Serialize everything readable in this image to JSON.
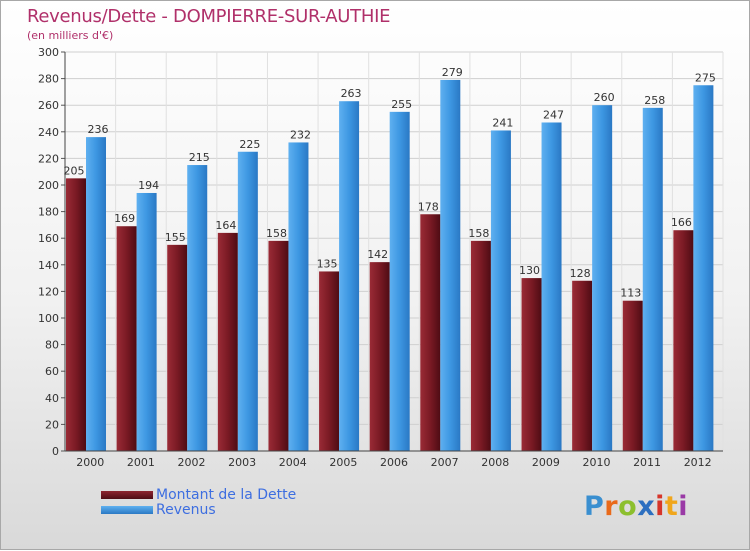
{
  "title": "Revenus/Dette - DOMPIERRE-SUR-AUTHIE",
  "subtitle": "(en milliers d'€)",
  "logo_text": "Proxiti",
  "colors": {
    "debt": "#7a1a24",
    "revenue": "#3d97e2",
    "title": "#b0306a",
    "legend_text": "#3d6ee0"
  },
  "chart_data": {
    "type": "bar",
    "categories": [
      "2000",
      "2001",
      "2002",
      "2003",
      "2004",
      "2005",
      "2006",
      "2007",
      "2008",
      "2009",
      "2010",
      "2011",
      "2012"
    ],
    "series": [
      {
        "name": "Montant de la Dette",
        "values": [
          205,
          169,
          155,
          164,
          158,
          135,
          142,
          178,
          158,
          130,
          128,
          113,
          166
        ]
      },
      {
        "name": "Revenus",
        "values": [
          236,
          194,
          215,
          225,
          232,
          263,
          255,
          279,
          241,
          247,
          260,
          258,
          275
        ]
      }
    ],
    "ylim": [
      0,
      300
    ],
    "yticks": [
      0,
      20,
      40,
      60,
      80,
      100,
      120,
      140,
      160,
      180,
      200,
      220,
      240,
      260,
      280,
      300
    ],
    "grid": true,
    "legend_position": "bottom-left"
  }
}
